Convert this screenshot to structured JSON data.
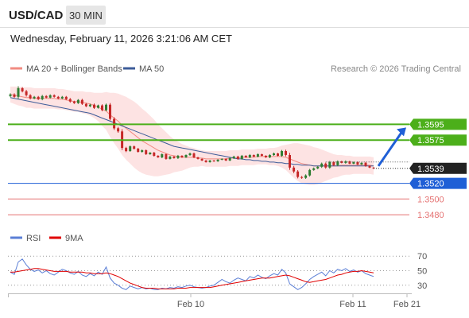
{
  "header": {
    "pair": "USD/CAD",
    "timeframe": "30 MIN",
    "datetime": "Wednesday, February 11, 2026 3:21:06 AM CET"
  },
  "legend": {
    "bollinger": "MA 20 + Bollinger Bands",
    "ma50": "MA 50",
    "copyright": "Research © 2026 Trading Central",
    "rsi": "RSI",
    "ma9": "9MA"
  },
  "colors": {
    "up": "#2e7d32",
    "down": "#c62828",
    "resistance": "#4caf1a",
    "support": "#e57373",
    "pivot": "#1f5fd6",
    "current": "#222222",
    "bollinger_fill": "#fde3e3",
    "ma20": "#f28b82",
    "ma50": "#3d5c99",
    "rsi": "#5b7fd6",
    "rsi_ma": "#e00000"
  },
  "chart_data": [
    {
      "type": "candlestick",
      "name": "price",
      "ylim": [
        1.3468,
        1.3652
      ],
      "x_ticks": [
        "Feb 10",
        "Feb 11",
        "Feb 21"
      ],
      "current_price": "1.3539",
      "levels": [
        {
          "label": "1.3595",
          "value": 1.3595,
          "kind": "resistance"
        },
        {
          "label": "1.3575",
          "value": 1.3575,
          "kind": "resistance"
        },
        {
          "label": "1.3520",
          "value": 1.352,
          "kind": "pivot"
        },
        {
          "label": "1.3500",
          "value": 1.35,
          "kind": "support"
        },
        {
          "label": "1.3480",
          "value": 1.348,
          "kind": "support"
        }
      ],
      "close": [
        1.3633,
        1.363,
        1.3641,
        1.3637,
        1.3632,
        1.3628,
        1.363,
        1.3627,
        1.3631,
        1.3629,
        1.3632,
        1.363,
        1.3628,
        1.363,
        1.3627,
        1.3624,
        1.3622,
        1.3626,
        1.3621,
        1.3618,
        1.362,
        1.3616,
        1.3619,
        1.3613,
        1.362,
        1.3602,
        1.359,
        1.3586,
        1.3565,
        1.3561,
        1.3567,
        1.3564,
        1.356,
        1.3562,
        1.3557,
        1.3559,
        1.3555,
        1.3553,
        1.3557,
        1.3551,
        1.3554,
        1.3552,
        1.3555,
        1.3553,
        1.3556,
        1.3558,
        1.3553,
        1.3551,
        1.3549,
        1.3547,
        1.3549,
        1.3548,
        1.355,
        1.3551,
        1.3549,
        1.3552,
        1.3554,
        1.3551,
        1.3555,
        1.3553,
        1.3556,
        1.3554,
        1.3557,
        1.3555,
        1.3553,
        1.3556,
        1.3558,
        1.3555,
        1.3561,
        1.3556,
        1.354,
        1.3535,
        1.3528,
        1.3527,
        1.353,
        1.3537,
        1.3539,
        1.3541,
        1.3545,
        1.354,
        1.3547,
        1.3543,
        1.3548,
        1.3546,
        1.3548,
        1.3545,
        1.3547,
        1.3544,
        1.3546,
        1.3542,
        1.354,
        1.3539
      ],
      "spread": [
        0.0004,
        0.0004,
        0.0007,
        0.0004,
        0.0005,
        0.0004,
        0.0003,
        0.0003,
        0.0004,
        0.0003,
        0.0003,
        0.0003,
        0.0003,
        0.0003,
        0.0003,
        0.0004,
        0.0003,
        0.0003,
        0.0004,
        0.0003,
        0.0003,
        0.0004,
        0.0003,
        0.0004,
        0.0004,
        0.0006,
        0.0006,
        0.0005,
        0.0008,
        0.0004,
        0.0003,
        0.0003,
        0.0003,
        0.0003,
        0.0003,
        0.0002,
        0.0003,
        0.0002,
        0.0003,
        0.0003,
        0.0002,
        0.0002,
        0.0003,
        0.0002,
        0.0002,
        0.0003,
        0.0003,
        0.0002,
        0.0002,
        0.0002,
        0.0002,
        0.0002,
        0.0002,
        0.0002,
        0.0002,
        0.0002,
        0.0003,
        0.0003,
        0.0003,
        0.0002,
        0.0003,
        0.0002,
        0.0003,
        0.0002,
        0.0002,
        0.0003,
        0.0003,
        0.0002,
        0.0004,
        0.0005,
        0.0008,
        0.0006,
        0.0005,
        0.0004,
        0.0004,
        0.0004,
        0.0003,
        0.0003,
        0.0004,
        0.0004,
        0.0004,
        0.0003,
        0.0003,
        0.0002,
        0.0003,
        0.0002,
        0.0002,
        0.0002,
        0.0002,
        0.0003,
        0.0002,
        0.0002
      ],
      "ma20": [
        1.3633,
        1.3632,
        1.3631,
        1.363,
        1.3629,
        1.3629,
        1.3628,
        1.3628,
        1.3628,
        1.3628,
        1.3628,
        1.3628,
        1.3627,
        1.3627,
        1.3626,
        1.3625,
        1.3624,
        1.3624,
        1.3623,
        1.3622,
        1.3621,
        1.3619,
        1.3617,
        1.3614,
        1.3612,
        1.3607,
        1.3603,
        1.3599,
        1.3594,
        1.359,
        1.3586,
        1.3582,
        1.3578,
        1.3574,
        1.3571,
        1.3568,
        1.3565,
        1.3562,
        1.356,
        1.3558,
        1.3556,
        1.3555,
        1.3554,
        1.3553,
        1.3553,
        1.3553,
        1.3553,
        1.3552,
        1.3552,
        1.3551,
        1.3551,
        1.3551,
        1.3551,
        1.3551,
        1.3551,
        1.3552,
        1.3552,
        1.3552,
        1.3553,
        1.3553,
        1.3553,
        1.3553,
        1.3554,
        1.3554,
        1.3554,
        1.3554,
        1.3554,
        1.3554,
        1.3554,
        1.3553,
        1.3551,
        1.3549,
        1.3547,
        1.3545,
        1.3544,
        1.3543,
        1.3542,
        1.3542,
        1.3542,
        1.3542,
        1.3542,
        1.3542,
        1.3542,
        1.3543,
        1.3543,
        1.3543,
        1.3543,
        1.3543,
        1.3543,
        1.3543,
        1.3543,
        1.3542
      ],
      "band_width": [
        0.001,
        0.0011,
        0.0012,
        0.0012,
        0.0013,
        0.0013,
        0.0013,
        0.0013,
        0.0013,
        0.0013,
        0.0013,
        0.0013,
        0.0013,
        0.0013,
        0.0013,
        0.0013,
        0.0013,
        0.0013,
        0.0014,
        0.0014,
        0.0015,
        0.0016,
        0.0018,
        0.0021,
        0.0024,
        0.0028,
        0.0032,
        0.0035,
        0.0038,
        0.004,
        0.0041,
        0.0042,
        0.0042,
        0.0041,
        0.004,
        0.0038,
        0.0036,
        0.0033,
        0.003,
        0.0027,
        0.0024,
        0.0021,
        0.0019,
        0.0017,
        0.0015,
        0.0013,
        0.0012,
        0.0011,
        0.001,
        0.001,
        0.001,
        0.001,
        0.001,
        0.001,
        0.001,
        0.001,
        0.001,
        0.001,
        0.001,
        0.001,
        0.001,
        0.001,
        0.001,
        0.001,
        0.001,
        0.0011,
        0.0011,
        0.0012,
        0.0014,
        0.0016,
        0.0019,
        0.0022,
        0.0024,
        0.0025,
        0.0025,
        0.0025,
        0.0024,
        0.0023,
        0.0021,
        0.0019,
        0.0017,
        0.0015,
        0.0014,
        0.0013,
        0.0012,
        0.0012,
        0.0011,
        0.0011,
        0.0011,
        0.0011,
        0.0011,
        0.0011
      ],
      "ma50": [
        1.3629,
        1.3628,
        1.3627,
        1.3626,
        1.3625,
        1.3624,
        1.3623,
        1.3622,
        1.3621,
        1.362,
        1.3619,
        1.3618,
        1.3617,
        1.3616,
        1.3615,
        1.3614,
        1.3613,
        1.3612,
        1.3611,
        1.361,
        1.3609,
        1.3607,
        1.3605,
        1.3603,
        1.3601,
        1.3599,
        1.3597,
        1.3595,
        1.3593,
        1.3591,
        1.3589,
        1.3587,
        1.3585,
        1.3583,
        1.3581,
        1.3579,
        1.3577,
        1.3575,
        1.3573,
        1.3571,
        1.3569,
        1.3567,
        1.3566,
        1.3565,
        1.3564,
        1.3563,
        1.3562,
        1.3561,
        1.356,
        1.3559,
        1.3558,
        1.3557,
        1.3556,
        1.3555,
        1.3554,
        1.3553,
        1.3552,
        1.3551,
        1.3551,
        1.355,
        1.355,
        1.3549,
        1.3549,
        1.3548,
        1.3548,
        1.3547,
        1.3547,
        1.3546,
        1.3546,
        1.3545,
        1.3545,
        1.3544,
        1.3544,
        1.3543,
        1.3543,
        1.3543,
        1.3542,
        1.3542,
        1.3542,
        1.3542,
        1.3542,
        1.3542,
        1.3542,
        1.3542,
        1.3542,
        1.3542,
        1.3542,
        1.3542,
        1.3542,
        1.3542,
        1.3542,
        1.3542
      ],
      "forecast": {
        "from": 1.354,
        "to": 1.3595
      }
    },
    {
      "type": "line",
      "name": "rsi",
      "ylim": [
        20,
        80
      ],
      "y_ticks": [
        70,
        50,
        30
      ],
      "series": [
        {
          "name": "RSI",
          "values": [
            48,
            45,
            62,
            66,
            58,
            52,
            49,
            51,
            47,
            50,
            46,
            44,
            48,
            52,
            50,
            47,
            45,
            49,
            44,
            42,
            46,
            43,
            48,
            45,
            55,
            40,
            33,
            30,
            26,
            24,
            29,
            27,
            25,
            27,
            25,
            26,
            24,
            24,
            26,
            25,
            27,
            26,
            28,
            27,
            29,
            30,
            28,
            27,
            26,
            27,
            29,
            30,
            34,
            38,
            35,
            33,
            37,
            40,
            38,
            36,
            42,
            40,
            44,
            41,
            39,
            43,
            46,
            44,
            52,
            47,
            32,
            28,
            24,
            27,
            32,
            38,
            42,
            45,
            48,
            43,
            50,
            47,
            52,
            50,
            53,
            49,
            51,
            48,
            50,
            46,
            44,
            42
          ]
        },
        {
          "name": "9MA",
          "values": [
            48,
            48,
            49,
            50,
            51,
            52,
            53,
            53,
            52,
            51,
            50,
            49,
            49,
            49,
            49,
            48,
            48,
            48,
            48,
            47,
            47,
            46,
            46,
            46,
            47,
            46,
            44,
            42,
            39,
            36,
            33,
            31,
            29,
            27,
            26,
            26,
            26,
            25,
            25,
            25,
            25,
            25,
            26,
            26,
            26,
            27,
            27,
            27,
            27,
            27,
            27,
            28,
            29,
            30,
            31,
            32,
            33,
            34,
            35,
            36,
            37,
            38,
            39,
            40,
            40,
            40,
            41,
            42,
            43,
            44,
            43,
            41,
            39,
            37,
            35,
            34,
            35,
            36,
            37,
            38,
            40,
            42,
            44,
            45,
            47,
            48,
            49,
            49,
            50,
            49,
            48,
            47
          ]
        }
      ]
    }
  ]
}
